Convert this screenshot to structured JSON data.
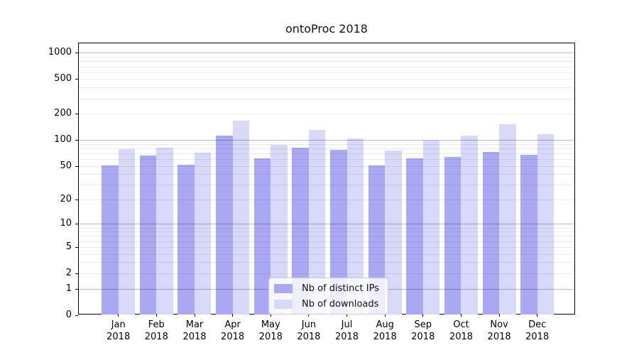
{
  "chart_data": {
    "type": "bar",
    "title": "ontoProc 2018",
    "categories": [
      "Jan",
      "Feb",
      "Mar",
      "Apr",
      "May",
      "Jun",
      "Jul",
      "Aug",
      "Sep",
      "Oct",
      "Nov",
      "Dec"
    ],
    "x_year_label": "2018",
    "series": [
      {
        "name": "Nb of distinct IPs",
        "color": "#a9a9f3",
        "values": [
          50,
          66,
          51,
          112,
          61,
          81,
          77,
          50,
          61,
          64,
          72,
          67
        ]
      },
      {
        "name": "Nb of downloads",
        "color": "#d8d8f9",
        "values": [
          78,
          81,
          71,
          165,
          88,
          129,
          104,
          75,
          98,
          111,
          151,
          116
        ]
      }
    ],
    "yscale": "log1p",
    "y_tick_labels": [
      0,
      1,
      2,
      5,
      10,
      20,
      50,
      100,
      200,
      500,
      1000
    ],
    "ylim": [
      0,
      1280
    ],
    "grid": {
      "major_values": [
        1,
        10,
        100,
        1000
      ],
      "minor_values": [
        2,
        3,
        4,
        5,
        6,
        7,
        8,
        9,
        20,
        30,
        40,
        50,
        60,
        70,
        80,
        90,
        200,
        300,
        400,
        500,
        600,
        700,
        800,
        900
      ]
    },
    "legend": {
      "position": "bottom-center",
      "items": [
        "Nb of distinct IPs",
        "Nb of downloads"
      ]
    }
  }
}
